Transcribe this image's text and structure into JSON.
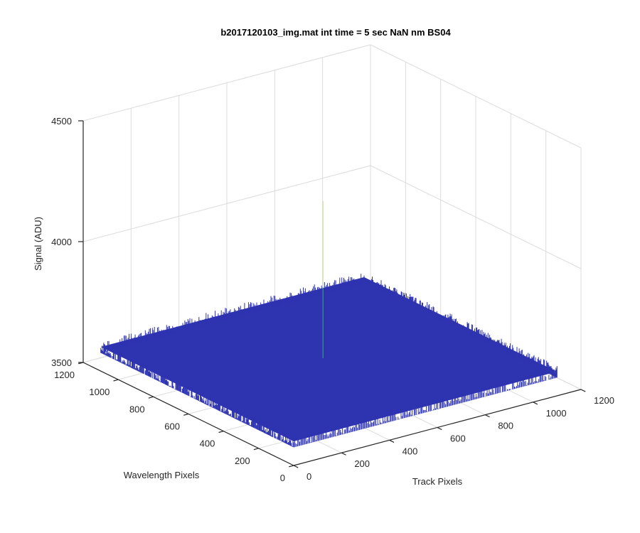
{
  "chart_data": {
    "type": "surface",
    "title": "b2017120103_img.mat int time = 5 sec  NaN nm BS04",
    "xlabel": "Track Pixels",
    "ylabel": "Wavelength Pixels",
    "zlabel": "Signal (ADU)",
    "xlim": [
      0,
      1200
    ],
    "ylim": [
      0,
      1200
    ],
    "zlim": [
      3500,
      4500
    ],
    "xticks": [
      "0",
      "200",
      "400",
      "600",
      "800",
      "1000",
      "1200"
    ],
    "yticks": [
      "0",
      "200",
      "400",
      "600",
      "800",
      "1000",
      "1200"
    ],
    "zticks": [
      "3500",
      "4000",
      "4500"
    ],
    "grid": true,
    "surface": {
      "extent_x": [
        0,
        1100
      ],
      "extent_y": [
        0,
        1100
      ],
      "baseline_signal": 3600,
      "noise_range": [
        3575,
        3625
      ],
      "color": "#2e33b0",
      "spike": {
        "x": 540,
        "y": 570,
        "peak": 4250
      }
    }
  }
}
